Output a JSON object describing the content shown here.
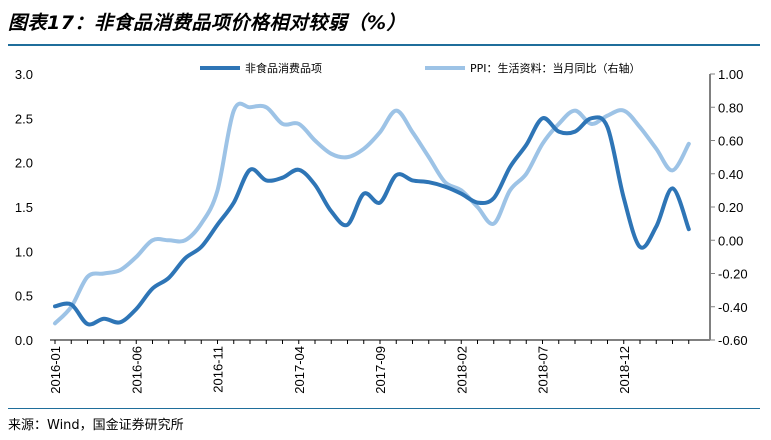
{
  "header": {
    "title": "图表17：非食品消费品项价格相对较弱（%）"
  },
  "footer": {
    "source": "来源：Wind，国金证券研究所"
  },
  "chart_data": {
    "type": "line",
    "xlabel": "",
    "ylabel": "",
    "ylim": [
      0.0,
      3.0
    ],
    "y2lim": [
      -0.6,
      1.0
    ],
    "left_ticks": [
      "3.0",
      "2.5",
      "2.0",
      "1.5",
      "1.0",
      "0.5",
      "0.0"
    ],
    "right_ticks": [
      "1.00",
      "0.80",
      "0.60",
      "0.40",
      "0.20",
      "0.00",
      "-0.20",
      "-0.40",
      "-0.60"
    ],
    "x_tick_labels": [
      "2016-01",
      "2016-06",
      "2016-11",
      "2017-04",
      "2017-09",
      "2018-02",
      "2018-07",
      "2018-12"
    ],
    "x": [
      "2016-01",
      "2016-02",
      "2016-03",
      "2016-04",
      "2016-05",
      "2016-06",
      "2016-07",
      "2016-08",
      "2016-09",
      "2016-10",
      "2016-11",
      "2016-12",
      "2017-01",
      "2017-02",
      "2017-03",
      "2017-04",
      "2017-05",
      "2017-06",
      "2017-07",
      "2017-08",
      "2017-09",
      "2017-10",
      "2017-11",
      "2017-12",
      "2018-01",
      "2018-02",
      "2018-03",
      "2018-04",
      "2018-05",
      "2018-06",
      "2018-07",
      "2018-08",
      "2018-09",
      "2018-10",
      "2018-11",
      "2018-12",
      "2019-01",
      "2019-02",
      "2019-03",
      "2019-04"
    ],
    "grid": false,
    "legend_position": "top",
    "series": [
      {
        "name": "非食品消费品项",
        "axis": "left",
        "color": "#2e75b6",
        "values": [
          0.38,
          0.4,
          0.18,
          0.24,
          0.2,
          0.35,
          0.58,
          0.7,
          0.92,
          1.05,
          1.3,
          1.55,
          1.92,
          1.8,
          1.83,
          1.92,
          1.75,
          1.45,
          1.3,
          1.65,
          1.55,
          1.86,
          1.8,
          1.78,
          1.73,
          1.65,
          1.55,
          1.6,
          1.95,
          2.2,
          2.5,
          2.35,
          2.35,
          2.5,
          2.4,
          1.6,
          1.05,
          1.28,
          1.71,
          1.25
        ]
      },
      {
        "name": "PPI：生活资料：当月同比（右轴）",
        "axis": "right",
        "color": "#9dc3e6",
        "values": [
          -0.5,
          -0.4,
          -0.22,
          -0.2,
          -0.18,
          -0.1,
          0.0,
          0.0,
          0.0,
          0.1,
          0.3,
          0.78,
          0.8,
          0.8,
          0.7,
          0.7,
          0.6,
          0.52,
          0.5,
          0.55,
          0.65,
          0.78,
          0.65,
          0.5,
          0.35,
          0.3,
          0.2,
          0.1,
          0.3,
          0.4,
          0.58,
          0.7,
          0.78,
          0.7,
          0.75,
          0.78,
          0.68,
          0.55,
          0.42,
          0.58
        ]
      }
    ]
  }
}
